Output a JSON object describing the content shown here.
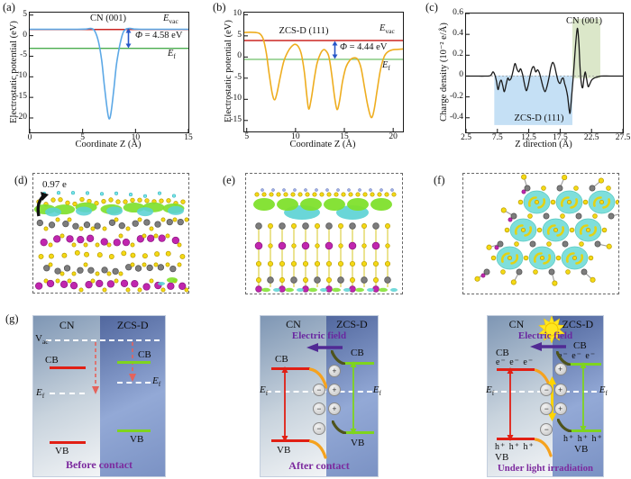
{
  "figure": {
    "panels": {
      "a": "(a)",
      "b": "(b)",
      "c": "(c)",
      "d": "(d)",
      "e": "(e)",
      "f": "(f)",
      "g": "(g)"
    }
  },
  "chart_data": [
    {
      "type": "line",
      "dom": "chA",
      "title": "CN (001)",
      "xlabel": "Coordinate Z (Å)",
      "ylabel": "Electrostatic potential (eV)",
      "xlim": [
        0,
        15
      ],
      "ylim": [
        -23.5,
        5.6
      ],
      "xticks": [
        {
          "v": 0,
          "t": "0"
        },
        {
          "v": 5,
          "t": "5"
        },
        {
          "v": 10,
          "t": "10"
        },
        {
          "v": 15,
          "t": "15"
        }
      ],
      "yticks": [
        {
          "v": 5,
          "t": "5"
        },
        {
          "v": 0,
          "t": "0"
        },
        {
          "v": -5,
          "t": "-5"
        },
        {
          "v": -10,
          "t": "-10"
        },
        {
          "v": -15,
          "t": "-15"
        },
        {
          "v": -20,
          "t": "-20"
        }
      ],
      "hlines": [
        {
          "y": 1.5,
          "color": "#cb2622",
          "label": "E_vac"
        },
        {
          "y": -3.08,
          "color": "#4aac4e",
          "label": "E_f"
        }
      ],
      "evac": "E",
      "evac_sub": "vac",
      "ef": "E",
      "ef_sub": "f",
      "phi": "Φ",
      "phi_eq": "= 4.58 eV",
      "work_function_eV": 4.58,
      "series": [
        {
          "name": "electrostatic potential CN(001)",
          "color": "#5ca8e6",
          "width": 1.6,
          "points": [
            [
              0,
              1.55
            ],
            [
              1.5,
              1.55
            ],
            [
              3,
              1.55
            ],
            [
              4.5,
              1.55
            ],
            [
              5.3,
              1.6
            ],
            [
              5.8,
              1.75
            ],
            [
              6.15,
              1.1
            ],
            [
              6.5,
              -1.5
            ],
            [
              6.8,
              -6
            ],
            [
              7.05,
              -12
            ],
            [
              7.3,
              -17.5
            ],
            [
              7.5,
              -20.2
            ],
            [
              7.7,
              -18.5
            ],
            [
              7.95,
              -13
            ],
            [
              8.2,
              -7
            ],
            [
              8.5,
              -2.5
            ],
            [
              8.8,
              0.6
            ],
            [
              9.1,
              1.6
            ],
            [
              9.5,
              1.75
            ],
            [
              9.9,
              1.6
            ],
            [
              10.5,
              1.55
            ],
            [
              12,
              1.55
            ],
            [
              13.5,
              1.55
            ],
            [
              15,
              1.55
            ]
          ]
        }
      ]
    },
    {
      "type": "line",
      "dom": "chB",
      "title": "ZCS-D (111)",
      "xlabel": "Coordinate Z (Å)",
      "ylabel": "Electrostatic potential (eV)",
      "xlim": [
        4.75,
        21
      ],
      "ylim": [
        -17.6,
        10.5
      ],
      "xticks": [
        {
          "v": 5,
          "t": "5"
        },
        {
          "v": 10,
          "t": "10"
        },
        {
          "v": 15,
          "t": "15"
        },
        {
          "v": 20,
          "t": "20"
        }
      ],
      "yticks": [
        {
          "v": 10,
          "t": "10"
        },
        {
          "v": 5,
          "t": "5"
        },
        {
          "v": 0,
          "t": "0"
        },
        {
          "v": -5,
          "t": "-5"
        },
        {
          "v": -10,
          "t": "-10"
        },
        {
          "v": -15,
          "t": "-15"
        }
      ],
      "hlines": [
        {
          "y": 3.9,
          "color": "#cb2622",
          "label": "E_vac"
        },
        {
          "y": -0.55,
          "color": "#7cc576",
          "label": "E_f"
        }
      ],
      "evac": "E",
      "evac_sub": "vac",
      "ef": "E",
      "ef_sub": "f",
      "phi": "Φ",
      "phi_eq": "= 4.44 eV",
      "work_function_eV": 4.44,
      "series": [
        {
          "name": "electrostatic potential ZCS-D(111)",
          "color": "#eead1f",
          "width": 1.6,
          "points": [
            [
              4.75,
              5.8
            ],
            [
              5.3,
              5.85
            ],
            [
              5.9,
              5.8
            ],
            [
              6.35,
              5.5
            ],
            [
              6.7,
              4.2
            ],
            [
              7.0,
              1
            ],
            [
              7.3,
              -4
            ],
            [
              7.6,
              -8.5
            ],
            [
              7.85,
              -10.1
            ],
            [
              8.1,
              -8.5
            ],
            [
              8.45,
              -4.5
            ],
            [
              8.8,
              -1
            ],
            [
              9.2,
              1.2
            ],
            [
              9.6,
              2.5
            ],
            [
              9.95,
              3.0
            ],
            [
              10.3,
              2.4
            ],
            [
              10.6,
              0.6
            ],
            [
              10.9,
              -3.5
            ],
            [
              11.15,
              -9
            ],
            [
              11.35,
              -12.3
            ],
            [
              11.6,
              -10
            ],
            [
              11.9,
              -5.5
            ],
            [
              12.2,
              -1.5
            ],
            [
              12.55,
              0.8
            ],
            [
              12.85,
              1.7
            ],
            [
              13.1,
              1.5
            ],
            [
              13.4,
              0.2
            ],
            [
              13.7,
              -4
            ],
            [
              14.0,
              -9.5
            ],
            [
              14.25,
              -12.4
            ],
            [
              14.5,
              -10.5
            ],
            [
              14.8,
              -6
            ],
            [
              15.15,
              -2.5
            ],
            [
              15.55,
              -0.8
            ],
            [
              15.95,
              -0.2
            ],
            [
              16.35,
              -0.5
            ],
            [
              16.7,
              -2.5
            ],
            [
              17.05,
              -7
            ],
            [
              17.4,
              -11.5
            ],
            [
              17.75,
              -14.3
            ],
            [
              18.05,
              -12.5
            ],
            [
              18.35,
              -8
            ],
            [
              18.7,
              -3
            ],
            [
              19.1,
              0.2
            ],
            [
              19.5,
              1.3
            ],
            [
              19.95,
              1.7
            ],
            [
              20.4,
              1.8
            ],
            [
              20.8,
              1.85
            ],
            [
              21,
              1.9
            ]
          ]
        }
      ]
    },
    {
      "type": "line",
      "dom": "chC",
      "xlabel": "Z direction  (Å)",
      "ylabel": "Charge density (10⁻² e/Å)",
      "ann_cn": "CN (001)",
      "ann_zcs": "ZCS-D (111)",
      "xlim": [
        2.5,
        27.5
      ],
      "ylim": [
        -0.54,
        0.6
      ],
      "xticks": [
        {
          "v": 2.5,
          "t": "2.5"
        },
        {
          "v": 7.5,
          "t": "7.5"
        },
        {
          "v": 12.5,
          "t": "12.5"
        },
        {
          "v": 17.5,
          "t": "17.5"
        },
        {
          "v": 22.5,
          "t": "22.5"
        },
        {
          "v": 27.5,
          "t": "27.5"
        }
      ],
      "yticks": [
        {
          "v": 0.6,
          "t": "0.6"
        },
        {
          "v": 0.4,
          "t": "0.4"
        },
        {
          "v": 0.2,
          "t": "0.2"
        },
        {
          "v": 0,
          "t": "0"
        },
        {
          "v": -0.2,
          "t": "-0.2"
        },
        {
          "v": -0.4,
          "t": "-0.4"
        }
      ],
      "zero_dash": true,
      "regions": [
        {
          "x0": 7.0,
          "x1": 19.45,
          "y0": 0.005,
          "y1": -0.47,
          "color": "#c5e0f5",
          "label": "ZCS-D (111)"
        },
        {
          "x0": 19.45,
          "x1": 23.9,
          "y0": 0.55,
          "y1": -0.02,
          "color": "#dbe7c9",
          "label": "CN (001)"
        }
      ],
      "series": [
        {
          "name": "charge density difference",
          "color": "#1a1a1a",
          "width": 1.3,
          "points": [
            [
              2.5,
              0
            ],
            [
              4,
              0
            ],
            [
              5.5,
              0
            ],
            [
              6.4,
              0.005
            ],
            [
              6.8,
              0.04
            ],
            [
              7.1,
              0.01
            ],
            [
              7.35,
              -0.05
            ],
            [
              7.6,
              -0.13
            ],
            [
              7.85,
              -0.07
            ],
            [
              8.1,
              -0.04
            ],
            [
              8.35,
              -0.09
            ],
            [
              8.6,
              -0.15
            ],
            [
              8.9,
              -0.08
            ],
            [
              9.15,
              -0.02
            ],
            [
              9.4,
              -0.04
            ],
            [
              9.7,
              -0.02
            ],
            [
              10.0,
              0.05
            ],
            [
              10.3,
              0.12
            ],
            [
              10.6,
              0.07
            ],
            [
              10.9,
              0.04
            ],
            [
              11.2,
              0.07
            ],
            [
              11.5,
              0.02
            ],
            [
              11.8,
              -0.07
            ],
            [
              12.1,
              -0.14
            ],
            [
              12.4,
              -0.09
            ],
            [
              12.7,
              0.0
            ],
            [
              13.0,
              0.07
            ],
            [
              13.3,
              0.09
            ],
            [
              13.6,
              0.04
            ],
            [
              13.9,
              0.06
            ],
            [
              14.2,
              0.03
            ],
            [
              14.5,
              -0.04
            ],
            [
              14.8,
              -0.11
            ],
            [
              15.1,
              -0.15
            ],
            [
              15.4,
              -0.1
            ],
            [
              15.7,
              -0.02
            ],
            [
              16.0,
              0.08
            ],
            [
              16.3,
              0.13
            ],
            [
              16.6,
              0.1
            ],
            [
              16.9,
              0.02
            ],
            [
              17.2,
              -0.05
            ],
            [
              17.5,
              -0.07
            ],
            [
              17.75,
              -0.03
            ],
            [
              18.0,
              -0.02
            ],
            [
              18.2,
              -0.07
            ],
            [
              18.45,
              -0.12
            ],
            [
              18.7,
              -0.2
            ],
            [
              18.95,
              -0.33
            ],
            [
              19.1,
              -0.35
            ],
            [
              19.3,
              -0.22
            ],
            [
              19.6,
              0.0
            ],
            [
              19.9,
              0.25
            ],
            [
              20.15,
              0.42
            ],
            [
              20.3,
              0.45
            ],
            [
              20.5,
              0.3
            ],
            [
              20.7,
              0.05
            ],
            [
              20.9,
              -0.08
            ],
            [
              21.1,
              -0.11
            ],
            [
              21.3,
              -0.02
            ],
            [
              21.5,
              0.04
            ],
            [
              21.7,
              -0.02
            ],
            [
              21.95,
              -0.1
            ],
            [
              22.2,
              -0.08
            ],
            [
              22.5,
              -0.04
            ],
            [
              22.9,
              -0.02
            ],
            [
              23.4,
              -0.01
            ],
            [
              24.0,
              0
            ],
            [
              25.5,
              0
            ],
            [
              27.5,
              0
            ]
          ]
        }
      ]
    }
  ],
  "mol": {
    "d": {
      "annotation": "0.97 e"
    },
    "e": {},
    "f": {}
  },
  "band": {
    "p1": {
      "left": "CN",
      "right": "ZCS-D",
      "vac": "V",
      "vac_sub": "ac",
      "cb": "CB",
      "vb": "VB",
      "ef": "E",
      "ef_sub": "f",
      "caption": "Before contact"
    },
    "p2": {
      "left": "CN",
      "right": "ZCS-D",
      "field": "Electric field",
      "cb": "CB",
      "vb": "VB",
      "ef": "E",
      "ef_sub": "f",
      "caption": "After contact",
      "charges": [
        [
          "+",
          63,
          34
        ],
        [
          "−",
          50,
          46
        ],
        [
          "+",
          63,
          46
        ],
        [
          "−",
          50,
          58
        ],
        [
          "+",
          63,
          58
        ],
        [
          "−",
          50,
          70
        ]
      ]
    },
    "p3": {
      "left": "CN",
      "right": "ZCS-D",
      "field": "Electric field",
      "cb": "CB",
      "vb": "VB",
      "ef": "E",
      "ef_sub": "f",
      "electrons": "e⁻ e⁻ e⁻",
      "holes": "h⁺ h⁺ h⁺",
      "caption": "Under light irradiation",
      "charges": [
        [
          "+",
          63,
          33
        ],
        [
          "−",
          51,
          46
        ],
        [
          "+",
          63,
          46
        ],
        [
          "−",
          51,
          58
        ],
        [
          "+",
          63,
          58
        ],
        [
          "−",
          51,
          71
        ]
      ]
    }
  },
  "colors": {
    "evac_line": "#cb2622",
    "ef_line_a": "#4aac4e",
    "ef_line_b": "#7cc576",
    "curve_a": "#5ca8e6",
    "curve_b": "#eead1f",
    "curve_c": "#1a1a1a",
    "region_zcs": "#c5e0f5",
    "region_cn": "#dbe7c9",
    "cb_vb_cn": "#e11f14",
    "cb_vb_zcs": "#7fd41e",
    "bend_cn": "#f5a21f",
    "bend_zcs": "#4e531d",
    "purple_text": "#7c2a9e",
    "field_arrow": "#512a94",
    "sun": "#ffe71f",
    "recomb_arrow": "#ffd400"
  }
}
